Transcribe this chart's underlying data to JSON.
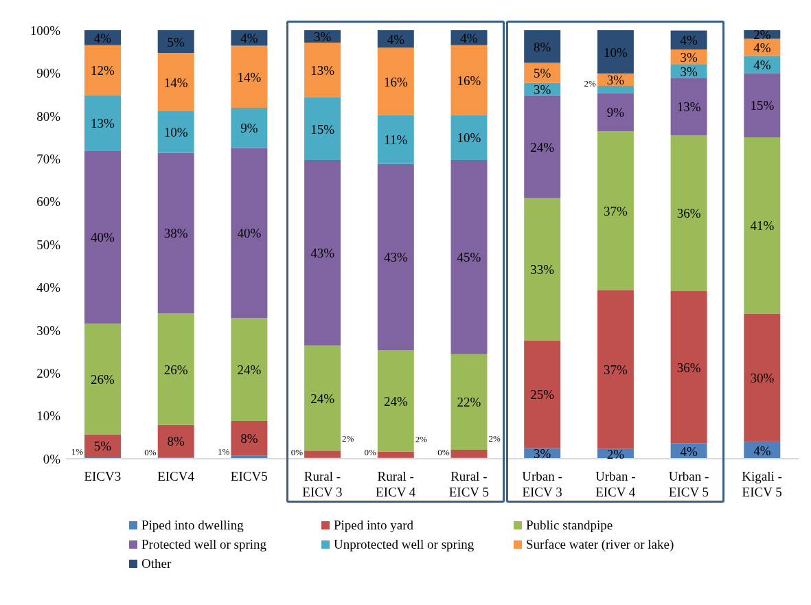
{
  "chart_data": {
    "type": "bar",
    "stacked": true,
    "legend": "bottom",
    "categories": [
      "EICV3",
      "EICV4",
      "EICV5",
      "Rural - EICV 3",
      "Rural - EICV 4",
      "Rural - EICV 5",
      "Urban - EICV 3",
      "Urban - EICV 4",
      "Urban - EICV 5",
      "Kigali - EICV 5"
    ],
    "ylim": [
      0,
      100
    ],
    "yticks": [
      {
        "value": 0,
        "label": "0%"
      },
      {
        "value": 10,
        "label": "10%"
      },
      {
        "value": 20,
        "label": "20%"
      },
      {
        "value": 30,
        "label": "30%"
      },
      {
        "value": 40,
        "label": "40%"
      },
      {
        "value": 50,
        "label": "50%"
      },
      {
        "value": 60,
        "label": "60%"
      },
      {
        "value": 70,
        "label": "70%"
      },
      {
        "value": 80,
        "label": "80%"
      },
      {
        "value": 90,
        "label": "90%"
      },
      {
        "value": 100,
        "label": "100%"
      }
    ],
    "series": [
      {
        "name": "Piped into dwelling",
        "color": "#4f81bd",
        "values": [
          0.5,
          0.3,
          0.7,
          0.2,
          0.2,
          0.2,
          2.5,
          2.3,
          3.6,
          3.9
        ],
        "value_labels": [
          "1%",
          "0%",
          "1%",
          "0%",
          "0%",
          "0%",
          "3%",
          "2%",
          "4%",
          "4%"
        ]
      },
      {
        "name": "Piped into yard",
        "color": "#c0504d",
        "values": [
          5.2,
          7.6,
          8.1,
          1.7,
          1.5,
          1.9,
          25.1,
          37.1,
          35.5,
          30.0
        ],
        "value_labels": [
          "5%",
          "8%",
          "8%",
          "2%",
          "2%",
          "2%",
          "25%",
          "37%",
          "36%",
          "30%"
        ]
      },
      {
        "name": "Public standpipe",
        "color": "#9bbb59",
        "values": [
          25.8,
          26.0,
          24.0,
          24.5,
          23.6,
          22.3,
          33.2,
          37.0,
          36.4,
          41.1
        ],
        "value_labels": [
          "26%",
          "26%",
          "24%",
          "24%",
          "24%",
          "22%",
          "33%",
          "37%",
          "36%",
          "41%"
        ]
      },
      {
        "name": "Protected well or spring",
        "color": "#8064a2",
        "values": [
          40.4,
          37.5,
          39.7,
          43.3,
          43.5,
          45.3,
          23.8,
          8.9,
          13.4,
          15.0
        ],
        "value_labels": [
          "40%",
          "38%",
          "40%",
          "43%",
          "43%",
          "45%",
          "24%",
          "9%",
          "13%",
          "15%"
        ]
      },
      {
        "name": "Unprotected well or spring",
        "color": "#4bacc6",
        "values": [
          12.9,
          9.7,
          9.4,
          14.6,
          11.4,
          10.5,
          3.1,
          1.7,
          3.1,
          4.0
        ],
        "value_labels": [
          "13%",
          "10%",
          "9%",
          "15%",
          "11%",
          "10%",
          "3%",
          "2%",
          "3%",
          "4%"
        ]
      },
      {
        "name": "Surface water (river or lake)",
        "color": "#f79646",
        "values": [
          11.7,
          13.6,
          14.5,
          12.8,
          15.7,
          16.3,
          4.7,
          2.9,
          3.5,
          4.0
        ],
        "value_labels": [
          "12%",
          "14%",
          "14%",
          "13%",
          "16%",
          "16%",
          "5%",
          "3%",
          "3%",
          "4%"
        ]
      },
      {
        "name": "Other",
        "color": "#2c4d75",
        "values": [
          3.5,
          5.3,
          3.6,
          2.9,
          4.3,
          3.5,
          7.6,
          10.1,
          4.4,
          2.0
        ],
        "value_labels": [
          "4%",
          "5%",
          "4%",
          "3%",
          "4%",
          "4%",
          "8%",
          "10%",
          "4%",
          "2%"
        ]
      }
    ]
  }
}
